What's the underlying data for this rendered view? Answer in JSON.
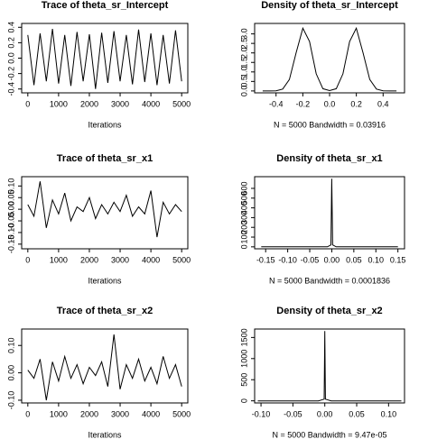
{
  "chart_data": [
    {
      "type": "line",
      "title": "Trace of theta_sr_Intercept",
      "xlabel": "Iterations",
      "xlim": [
        -200,
        5200
      ],
      "xticks": [
        0,
        1000,
        2000,
        3000,
        4000,
        5000
      ],
      "ylim": [
        -0.45,
        0.45
      ],
      "yticks": [
        -0.4,
        -0.2,
        {
          "value": 0,
          "label": "0.0"
        },
        0.2,
        0.4
      ],
      "x": [
        0,
        200,
        400,
        600,
        800,
        1000,
        1200,
        1400,
        1600,
        1800,
        2000,
        2200,
        2400,
        2600,
        2800,
        3000,
        3200,
        3400,
        3600,
        3800,
        4000,
        4200,
        4400,
        4600,
        4800,
        5000
      ],
      "values": [
        0.3,
        -0.35,
        0.32,
        -0.3,
        0.38,
        -0.33,
        0.3,
        -0.36,
        0.34,
        -0.3,
        0.31,
        -0.4,
        0.33,
        -0.32,
        0.35,
        -0.3,
        0.3,
        -0.34,
        0.37,
        -0.31,
        0.32,
        -0.35,
        0.3,
        -0.33,
        0.36,
        -0.3
      ],
      "color": "#000000"
    },
    {
      "type": "line",
      "title": "Density of theta_sr_Intercept",
      "xlabel": "N = 5000   Bandwidth = 0.03916",
      "xlim": [
        -0.56,
        0.56
      ],
      "xticks": [
        -0.4,
        -0.2,
        {
          "value": 0,
          "label": "0.0"
        },
        0.2,
        0.4
      ],
      "ylim": [
        -0.1,
        3.55
      ],
      "yticks": [
        {
          "value": 0,
          "label": "0.0"
        },
        0.5,
        {
          "value": 1,
          "label": "1.0"
        },
        1.5,
        {
          "value": 2,
          "label": "2.0"
        },
        2.5,
        {
          "value": 3,
          "label": "3.0"
        }
      ],
      "x": [
        -0.5,
        -0.45,
        -0.4,
        -0.35,
        -0.3,
        -0.25,
        -0.2,
        -0.15,
        -0.1,
        -0.05,
        0,
        0.05,
        0.1,
        0.15,
        0.2,
        0.25,
        0.3,
        0.35,
        0.4,
        0.45,
        0.5
      ],
      "values": [
        0,
        0,
        0.01,
        0.1,
        0.6,
        2.0,
        3.3,
        2.6,
        0.9,
        0.12,
        0.02,
        0.12,
        0.9,
        2.6,
        3.3,
        2.0,
        0.6,
        0.1,
        0.01,
        0,
        0
      ],
      "color": "#000000"
    },
    {
      "type": "line",
      "title": "Trace of theta_sr_x1",
      "xlabel": "Iterations",
      "xlim": [
        -200,
        5200
      ],
      "xticks": [
        0,
        1000,
        2000,
        3000,
        4000,
        5000
      ],
      "ylim": [
        -0.17,
        0.14
      ],
      "yticks": [
        {
          "value": -0.15,
          "label": "-0.15"
        },
        {
          "value": -0.1,
          "label": "-0.10"
        },
        {
          "value": -0.05,
          "label": "-0.05"
        },
        {
          "value": 0,
          "label": "0.00"
        },
        {
          "value": 0.05,
          "label": "0.05"
        },
        {
          "value": 0.1,
          "label": "0.10"
        }
      ],
      "x": [
        0,
        200,
        400,
        600,
        800,
        1000,
        1200,
        1400,
        1600,
        1800,
        2000,
        2200,
        2400,
        2600,
        2800,
        3000,
        3200,
        3400,
        3600,
        3800,
        4000,
        4200,
        4400,
        4600,
        4800,
        5000
      ],
      "values": [
        0.02,
        -0.03,
        0.12,
        -0.08,
        0.04,
        -0.02,
        0.07,
        -0.05,
        0.01,
        -0.01,
        0.05,
        -0.04,
        0.02,
        -0.02,
        0.03,
        -0.01,
        0.06,
        -0.03,
        0.01,
        -0.02,
        0.08,
        -0.12,
        0.03,
        -0.02,
        0.02,
        -0.01
      ],
      "color": "#000000"
    },
    {
      "type": "line",
      "title": "Density of theta_sr_x1",
      "xlabel": "N = 5000   Bandwidth = 0.0001836",
      "xlim": [
        -0.175,
        0.165
      ],
      "xticks": [
        {
          "value": -0.15,
          "label": "-0.15"
        },
        {
          "value": -0.1,
          "label": "-0.10"
        },
        {
          "value": -0.05,
          "label": "-0.05"
        },
        {
          "value": 0,
          "label": "0.00"
        },
        {
          "value": 0.05,
          "label": "0.05"
        },
        {
          "value": 0.1,
          "label": "0.10"
        },
        {
          "value": 0.15,
          "label": "0.15"
        }
      ],
      "ylim": [
        -20,
        720
      ],
      "yticks": [
        0,
        100,
        200,
        300,
        400,
        500,
        600
      ],
      "x": [
        -0.16,
        -0.01,
        -0.002,
        0,
        0.002,
        0.01,
        0.15
      ],
      "values": [
        0,
        0,
        20,
        700,
        20,
        0,
        0
      ],
      "color": "#000000"
    },
    {
      "type": "line",
      "title": "Trace of theta_sr_x2",
      "xlabel": "Iterations",
      "xlim": [
        -200,
        5200
      ],
      "xticks": [
        0,
        1000,
        2000,
        3000,
        4000,
        5000
      ],
      "ylim": [
        -0.11,
        0.16
      ],
      "yticks": [
        {
          "value": -0.1,
          "label": "-0.10"
        },
        {
          "value": 0,
          "label": "0.00"
        },
        {
          "value": 0.1,
          "label": "0.10"
        }
      ],
      "x": [
        0,
        200,
        400,
        600,
        800,
        1000,
        1200,
        1400,
        1600,
        1800,
        2000,
        2200,
        2400,
        2600,
        2800,
        3000,
        3200,
        3400,
        3600,
        3800,
        4000,
        4200,
        4400,
        4600,
        4800,
        5000
      ],
      "values": [
        0.01,
        -0.02,
        0.05,
        -0.1,
        0.04,
        -0.03,
        0.06,
        -0.02,
        0.03,
        -0.04,
        0.02,
        -0.01,
        0.04,
        -0.05,
        0.14,
        -0.06,
        0.03,
        -0.02,
        0.05,
        -0.03,
        0.02,
        -0.04,
        0.06,
        -0.02,
        0.03,
        -0.05
      ],
      "color": "#000000"
    },
    {
      "type": "line",
      "title": "Density of theta_sr_x2",
      "xlabel": "N = 5000   Bandwidth = 9.47e-05",
      "xlim": [
        -0.11,
        0.125
      ],
      "xticks": [
        {
          "value": -0.1,
          "label": "-0.10"
        },
        {
          "value": -0.05,
          "label": "-0.05"
        },
        {
          "value": 0,
          "label": "0.00"
        },
        {
          "value": 0.05,
          "label": "0.05"
        },
        {
          "value": 0.1,
          "label": "0.10"
        }
      ],
      "ylim": [
        -50,
        1700
      ],
      "yticks": [
        0,
        500,
        1000,
        1500
      ],
      "x": [
        -0.105,
        -0.01,
        -0.001,
        0,
        0.001,
        0.01,
        0.12
      ],
      "values": [
        0,
        0,
        40,
        1650,
        40,
        0,
        0
      ],
      "color": "#000000"
    }
  ]
}
